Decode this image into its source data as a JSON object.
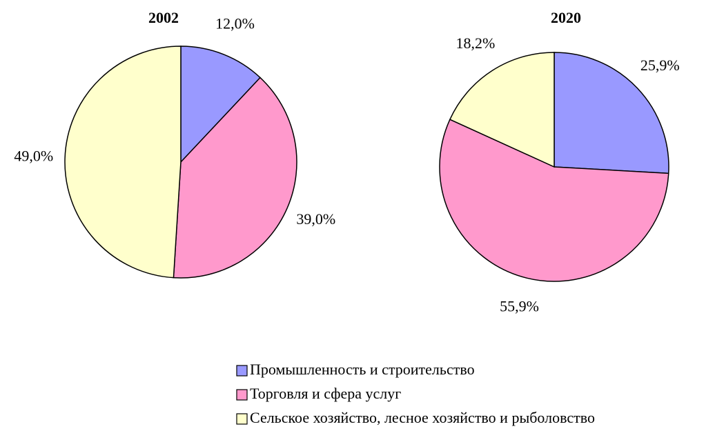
{
  "chart_data": [
    {
      "type": "pie",
      "title": "2002",
      "categories": [
        "Промышленность и строительство",
        "Торговля и сфера услуг",
        "Сельское хозяйство, лесное хозяйство и рыболовство"
      ],
      "values": [
        12.0,
        39.0,
        49.0
      ],
      "value_labels": [
        "12,0%",
        "39,0%",
        "49,0%"
      ],
      "colors": [
        "#9999ff",
        "#ff99cc",
        "#ffffcc"
      ],
      "legend": "bottom"
    },
    {
      "type": "pie",
      "title": "2020",
      "values": [
        25.9,
        55.9,
        18.2
      ],
      "value_labels": [
        "25,9%",
        "55,9%",
        "18,2%"
      ],
      "colors": [
        "#9999ff",
        "#ff99cc",
        "#ffffcc"
      ]
    }
  ]
}
